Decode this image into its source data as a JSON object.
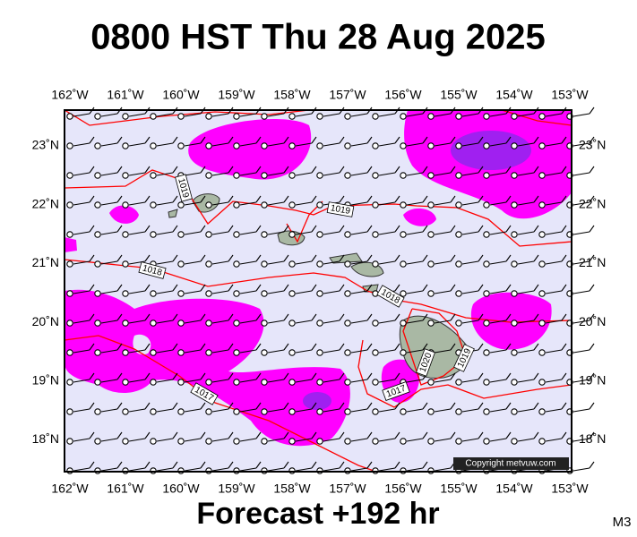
{
  "title": "0800 HST Thu 28 Aug 2025",
  "footer": "Forecast +192 hr",
  "model": "M3",
  "copyright": "Copyright metvuw.com",
  "longitudes": [
    "162˚W",
    "161˚W",
    "160˚W",
    "159˚W",
    "158˚W",
    "157˚W",
    "156˚W",
    "155˚W",
    "154˚W",
    "153˚W"
  ],
  "latitudes": [
    "23˚N",
    "22˚N",
    "21˚N",
    "20˚N",
    "19˚N",
    "18˚N"
  ],
  "isobar_labels": [
    1019,
    1019,
    1018,
    1018,
    1017,
    1017,
    1020,
    1019
  ]
}
